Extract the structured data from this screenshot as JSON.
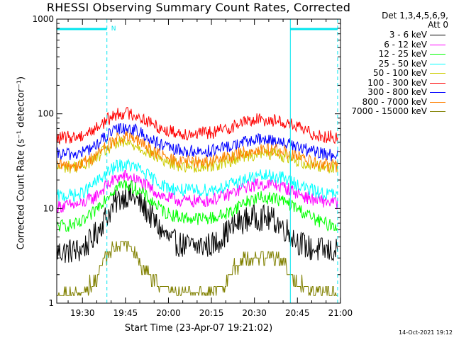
{
  "title": "RHESSI Observing Summary Count Rates, Corrected",
  "legend": {
    "header_line1": "Det 1,3,4,5,6,9,",
    "header_line2": "Att 0"
  },
  "flag_label": "N",
  "timestamp": "14-Oct-2021 19:12",
  "chart_data": {
    "type": "line",
    "title": "RHESSI Observing Summary Count Rates, Corrected",
    "xlabel": "Start Time (23-Apr-07 19:21:02)",
    "ylabel": "Corrected Count Rate (s⁻¹ detector⁻¹)",
    "y_scale": "log",
    "ylim": [
      1,
      1000
    ],
    "xlim_minutes": [
      0,
      99
    ],
    "x_ticks": [
      {
        "label": "19:30",
        "minutes": 8.97
      },
      {
        "label": "19:45",
        "minutes": 23.97
      },
      {
        "label": "20:00",
        "minutes": 38.97
      },
      {
        "label": "20:15",
        "minutes": 53.97
      },
      {
        "label": "20:30",
        "minutes": 68.97
      },
      {
        "label": "20:45",
        "minutes": 83.97
      },
      {
        "label": "21:00",
        "minutes": 98.97
      }
    ],
    "y_ticks": [
      {
        "label": "1",
        "value": 1
      },
      {
        "label": "10",
        "value": 10
      },
      {
        "label": "100",
        "value": 100
      },
      {
        "label": "1000",
        "value": 1000
      }
    ],
    "night_boundaries_minutes": [
      0,
      17.5,
      81.5,
      98.0
    ],
    "flag_segments_minutes": [
      [
        0,
        17.5
      ],
      [
        81.5,
        98.0
      ]
    ],
    "series": [
      {
        "name": "3 - 6 keV",
        "color": "#000000",
        "x": [
          0,
          8,
          12,
          17,
          21,
          24,
          27,
          32,
          36,
          40,
          45,
          50,
          55,
          59,
          63,
          68,
          72,
          76,
          80,
          84,
          88,
          93,
          98
        ],
        "y": [
          3.5,
          3.6,
          4.5,
          8,
          12,
          14,
          13,
          9,
          6,
          4.5,
          4,
          4,
          4.2,
          5.5,
          7,
          8,
          8,
          7.5,
          6,
          4.5,
          3.8,
          3.6,
          3.5
        ]
      },
      {
        "name": "6 - 12 keV",
        "color": "#ff00ff",
        "x": [
          0,
          8,
          13,
          17,
          21,
          24,
          28,
          33,
          38,
          44,
          50,
          55,
          60,
          65,
          70,
          75,
          79,
          84,
          89,
          93,
          98
        ],
        "y": [
          10.5,
          11,
          13,
          17,
          21,
          22,
          20,
          16,
          13,
          12,
          12,
          12.5,
          14,
          16.5,
          18,
          18,
          17,
          14.5,
          12.5,
          12,
          11.5
        ]
      },
      {
        "name": "12 - 25 keV",
        "color": "#00ff00",
        "x": [
          0,
          8,
          12,
          17,
          21,
          24,
          28,
          33,
          38,
          44,
          50,
          55,
          60,
          65,
          70,
          75,
          79,
          84,
          89,
          93,
          98
        ],
        "y": [
          6.5,
          6.8,
          8.5,
          13,
          17,
          18,
          16,
          12,
          9,
          8,
          7.8,
          8,
          9,
          11.5,
          13,
          13,
          12,
          10,
          8,
          7,
          6.5
        ]
      },
      {
        "name": "25 - 50 keV",
        "color": "#00ffff",
        "x": [
          0,
          8,
          13,
          17,
          21,
          24,
          28,
          33,
          38,
          44,
          50,
          55,
          60,
          65,
          70,
          75,
          79,
          84,
          89,
          93,
          98
        ],
        "y": [
          13.5,
          14,
          18,
          23,
          28,
          29,
          27,
          21,
          17,
          15.5,
          15.5,
          16,
          17.5,
          20,
          22,
          22,
          21,
          18,
          15.5,
          14.5,
          14
        ]
      },
      {
        "name": "50 - 100 keV",
        "color": "#cccc00",
        "x": [
          0,
          8,
          13,
          17,
          21,
          24,
          28,
          33,
          38,
          44,
          50,
          55,
          60,
          65,
          70,
          75,
          79,
          84,
          89,
          93,
          98
        ],
        "y": [
          27,
          28,
          33,
          41,
          48,
          49,
          46,
          38,
          31,
          28,
          28,
          29,
          32,
          36,
          38,
          38,
          36,
          32,
          29,
          28,
          27
        ]
      },
      {
        "name": "100 - 300 keV",
        "color": "#ff0000",
        "x": [
          0,
          8,
          13,
          17,
          21,
          24,
          28,
          33,
          38,
          44,
          50,
          55,
          60,
          65,
          70,
          75,
          79,
          84,
          89,
          93,
          98
        ],
        "y": [
          55,
          58,
          68,
          84,
          100,
          103,
          96,
          79,
          67,
          62,
          62,
          64,
          71,
          82,
          87,
          86,
          82,
          72,
          62,
          58,
          56
        ]
      },
      {
        "name": "300 - 800 keV",
        "color": "#0000ff",
        "x": [
          0,
          8,
          13,
          17,
          21,
          24,
          28,
          33,
          38,
          44,
          50,
          55,
          60,
          65,
          70,
          75,
          79,
          84,
          89,
          93,
          98
        ],
        "y": [
          37,
          38,
          45,
          57,
          68,
          72,
          66,
          53,
          44,
          40,
          40,
          41,
          45,
          50,
          53,
          53,
          50,
          44,
          40,
          38,
          36
        ]
      },
      {
        "name": "800 - 7000 keV",
        "color": "#ff8000",
        "x": [
          0,
          8,
          13,
          17,
          21,
          24,
          28,
          33,
          38,
          44,
          50,
          55,
          60,
          65,
          70,
          75,
          79,
          84,
          89,
          93,
          98
        ],
        "y": [
          28,
          29,
          35,
          45,
          54,
          57,
          52,
          42,
          34,
          31,
          31,
          32,
          35,
          39,
          42,
          42,
          40,
          35,
          31,
          29,
          28
        ]
      },
      {
        "name": "7000 - 15000 keV",
        "color": "#808000",
        "x": [
          0,
          10,
          14,
          17,
          20,
          24,
          27,
          30,
          33,
          36,
          39,
          45,
          52,
          58,
          62,
          66,
          70,
          74,
          78,
          82,
          86,
          90,
          98
        ],
        "y": [
          1.2,
          1.3,
          2,
          3,
          4,
          4.5,
          3.5,
          2.5,
          2,
          1.6,
          1.4,
          1.3,
          1.3,
          1.5,
          2.5,
          3,
          3,
          3,
          2.8,
          2,
          1.5,
          1.3,
          1.2
        ]
      }
    ]
  }
}
